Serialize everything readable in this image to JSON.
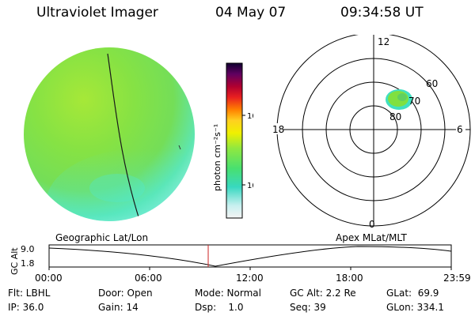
{
  "header": {
    "instrument": "Ultraviolet Imager",
    "date": "04 May 07",
    "time": "09:34:58 UT"
  },
  "colorbar": {
    "unit_label": "photon cm⁻²s⁻¹",
    "ticks": [
      "100",
      "10"
    ]
  },
  "polar_plot": {
    "mlt_labels": {
      "top": "12",
      "left": "18",
      "right": "6",
      "bottom": "0"
    },
    "lat_labels": [
      "60",
      "70",
      "80"
    ]
  },
  "timeline": {
    "left_label": "Geographic Lat/Lon",
    "right_label": "Apex MLat/MLT",
    "y_axis_label": "GC Alt",
    "y_ticks": [
      "9.0",
      "1.8"
    ],
    "x_ticks": [
      "00:00",
      "06:00",
      "12:00",
      "18:00",
      "23:59"
    ]
  },
  "status": {
    "filter": "Flt: LBHL",
    "ip": "IP: 36.0",
    "door": "Door: Open",
    "gain": "Gain: 14",
    "mode": "Mode: Normal",
    "dsp": "Dsp:    1.0",
    "gc_alt": "GC Alt: 2.2 Re",
    "seq": "Seq: 39",
    "glat": "GLat:  69.9",
    "glon": "GLon: 334.1"
  },
  "colors": {
    "disk_green": "#7fe040",
    "disk_cyan": "#50e8d0",
    "disk_pale": "#b8f4f0",
    "timeline_marker": "#cc2222"
  }
}
